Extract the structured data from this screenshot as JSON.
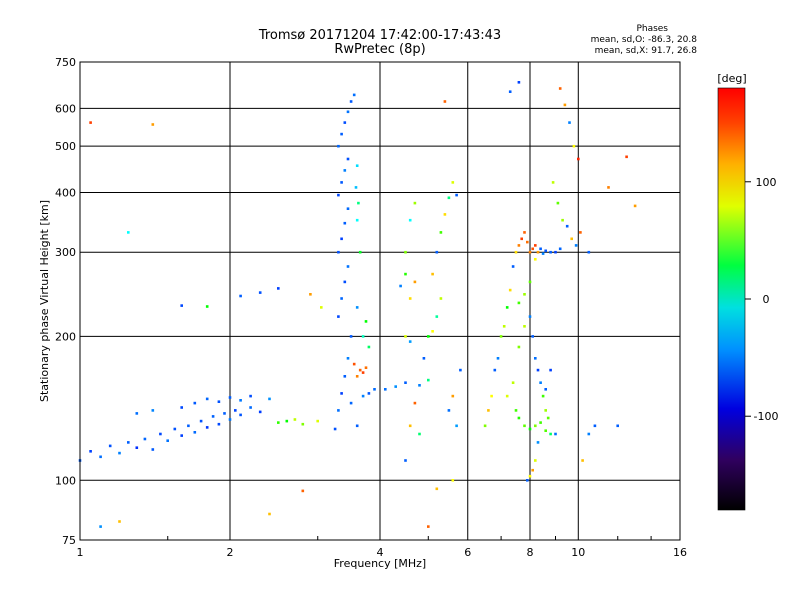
{
  "chart_data": {
    "type": "scatter",
    "title": "Tromsø 20171204 17:42:00-17:43:43",
    "subtitle": "RwPretec (8p)",
    "xlabel": "Frequency [MHz]",
    "ylabel": "Stationary phase Virtual Height [km]",
    "x_scale": "log",
    "y_scale": "log",
    "xlim": [
      1,
      16
    ],
    "ylim": [
      75,
      750
    ],
    "x_ticks": [
      1,
      2,
      4,
      6,
      8,
      10,
      16
    ],
    "x_tick_labels": [
      "1",
      "2",
      "4",
      "6",
      "8",
      "10",
      "16"
    ],
    "y_ticks": [
      75,
      100,
      200,
      300,
      400,
      500,
      600,
      750
    ],
    "y_tick_labels": [
      "75",
      "100",
      "200",
      "300",
      "400",
      "500",
      "600",
      "750"
    ],
    "grid": true,
    "phase_box": {
      "title": "Phases",
      "line_o": "mean, sd,O: -86.3, 20.8",
      "line_x": "mean, sd,X:  91.7, 26.8"
    },
    "colorbar": {
      "label": "[deg]",
      "range": [
        -180,
        180
      ],
      "ticks": [
        100,
        0,
        -100
      ],
      "tick_labels": [
        "100",
        "0",
        "-100"
      ],
      "colormap": "rainbow"
    },
    "series": [
      {
        "points": [
          [
            1.0,
            110,
            -110
          ],
          [
            1.05,
            115,
            -120
          ],
          [
            1.1,
            112,
            -105
          ],
          [
            1.15,
            118,
            -115
          ],
          [
            1.2,
            114,
            -100
          ],
          [
            1.25,
            120,
            -110
          ],
          [
            1.3,
            117,
            -125
          ],
          [
            1.35,
            122,
            -108
          ],
          [
            1.4,
            116,
            -112
          ],
          [
            1.45,
            125,
            -118
          ],
          [
            1.5,
            121,
            -104
          ],
          [
            1.55,
            128,
            -115
          ],
          [
            1.6,
            124,
            -120
          ],
          [
            1.65,
            130,
            -110
          ],
          [
            1.7,
            126,
            -106
          ],
          [
            1.75,
            133,
            -114
          ],
          [
            1.8,
            129,
            -122
          ],
          [
            1.85,
            136,
            -109
          ],
          [
            1.9,
            131,
            -117
          ],
          [
            1.95,
            138,
            -111
          ],
          [
            2.0,
            134,
            -103
          ],
          [
            2.05,
            140,
            -119
          ],
          [
            2.1,
            137,
            -113
          ],
          [
            2.2,
            142,
            -107
          ],
          [
            2.3,
            139,
            -121
          ],
          [
            1.6,
            142,
            -118
          ],
          [
            1.7,
            145,
            -112
          ],
          [
            1.8,
            148,
            -108
          ],
          [
            1.9,
            146,
            -115
          ],
          [
            2.0,
            149,
            -110
          ],
          [
            2.1,
            147,
            -102
          ],
          [
            2.2,
            150,
            -116
          ],
          [
            2.4,
            148,
            -95
          ],
          [
            1.3,
            138,
            -105
          ],
          [
            1.4,
            140,
            -98
          ],
          [
            2.6,
            133,
            20
          ],
          [
            2.8,
            131,
            60
          ],
          [
            3.0,
            133,
            90
          ],
          [
            2.5,
            132,
            35
          ],
          [
            2.7,
            134,
            80
          ],
          [
            2.1,
            243,
            -110
          ],
          [
            2.3,
            247,
            -115
          ],
          [
            2.5,
            252,
            -120
          ],
          [
            1.6,
            232,
            -118
          ],
          [
            1.8,
            231,
            20
          ],
          [
            3.25,
            128,
            -115
          ],
          [
            3.3,
            140,
            -105
          ],
          [
            3.35,
            152,
            -120
          ],
          [
            3.4,
            165,
            -110
          ],
          [
            3.45,
            180,
            -100
          ],
          [
            3.5,
            200,
            -112
          ],
          [
            3.3,
            220,
            -118
          ],
          [
            3.35,
            240,
            -108
          ],
          [
            3.4,
            260,
            -116
          ],
          [
            3.45,
            280,
            -104
          ],
          [
            3.3,
            300,
            -114
          ],
          [
            3.35,
            320,
            -120
          ],
          [
            3.4,
            345,
            -110
          ],
          [
            3.45,
            370,
            -106
          ],
          [
            3.3,
            395,
            -118
          ],
          [
            3.35,
            420,
            -112
          ],
          [
            3.4,
            445,
            -100
          ],
          [
            3.45,
            470,
            -115
          ],
          [
            3.3,
            500,
            -108
          ],
          [
            3.35,
            530,
            -110
          ],
          [
            3.4,
            560,
            -116
          ],
          [
            3.45,
            590,
            -104
          ],
          [
            3.5,
            620,
            -112
          ],
          [
            3.55,
            640,
            -105
          ],
          [
            3.6,
            230,
            -95
          ],
          [
            3.6,
            350,
            -60
          ],
          [
            3.62,
            380,
            -20
          ],
          [
            3.65,
            300,
            10
          ],
          [
            3.58,
            410,
            -80
          ],
          [
            3.6,
            455,
            -70
          ],
          [
            3.6,
            130,
            -110
          ],
          [
            3.5,
            145,
            -108
          ],
          [
            3.7,
            150,
            -100
          ],
          [
            3.8,
            152,
            -112
          ],
          [
            3.9,
            155,
            -106
          ],
          [
            3.6,
            165,
            140
          ],
          [
            3.65,
            170,
            150
          ],
          [
            3.7,
            168,
            160
          ],
          [
            3.75,
            172,
            145
          ],
          [
            3.55,
            175,
            155
          ],
          [
            3.7,
            200,
            -40
          ],
          [
            3.75,
            215,
            20
          ],
          [
            3.8,
            190,
            -10
          ],
          [
            4.1,
            155,
            -105
          ],
          [
            4.3,
            157,
            -95
          ],
          [
            4.5,
            160,
            -110
          ],
          [
            4.8,
            158,
            -100
          ],
          [
            5.0,
            162,
            -20
          ],
          [
            4.5,
            200,
            90
          ],
          [
            4.6,
            240,
            110
          ],
          [
            4.7,
            260,
            130
          ],
          [
            4.5,
            300,
            60
          ],
          [
            4.6,
            350,
            -60
          ],
          [
            4.7,
            380,
            70
          ],
          [
            4.6,
            130,
            120
          ],
          [
            4.7,
            145,
            150
          ],
          [
            4.8,
            125,
            -15
          ],
          [
            4.5,
            110,
            -110
          ],
          [
            4.4,
            255,
            -100
          ],
          [
            4.5,
            270,
            30
          ],
          [
            4.6,
            195,
            -90
          ],
          [
            4.9,
            180,
            -110
          ],
          [
            5.0,
            200,
            20
          ],
          [
            5.1,
            205,
            100
          ],
          [
            5.2,
            220,
            -30
          ],
          [
            5.3,
            240,
            80
          ],
          [
            5.1,
            270,
            120
          ],
          [
            5.2,
            300,
            -110
          ],
          [
            5.3,
            330,
            40
          ],
          [
            5.4,
            360,
            110
          ],
          [
            5.5,
            390,
            -20
          ],
          [
            5.6,
            420,
            90
          ],
          [
            5.7,
            395,
            -110
          ],
          [
            5.5,
            140,
            -105
          ],
          [
            5.6,
            150,
            130
          ],
          [
            5.7,
            130,
            -90
          ],
          [
            5.8,
            170,
            -110
          ],
          [
            5.6,
            100,
            100
          ],
          [
            5.4,
            620,
            150
          ],
          [
            5.0,
            80,
            150
          ],
          [
            5.2,
            96,
            120
          ],
          [
            6.5,
            130,
            60
          ],
          [
            6.6,
            140,
            120
          ],
          [
            6.7,
            150,
            100
          ],
          [
            6.8,
            170,
            -110
          ],
          [
            6.9,
            180,
            -100
          ],
          [
            7.0,
            200,
            60
          ],
          [
            7.1,
            210,
            80
          ],
          [
            7.2,
            230,
            20
          ],
          [
            7.3,
            250,
            110
          ],
          [
            7.4,
            280,
            -110
          ],
          [
            7.5,
            300,
            110
          ],
          [
            7.6,
            310,
            140
          ],
          [
            7.7,
            320,
            160
          ],
          [
            7.8,
            330,
            150
          ],
          [
            7.9,
            315,
            145
          ],
          [
            8.0,
            300,
            140
          ],
          [
            8.1,
            305,
            155
          ],
          [
            8.2,
            310,
            160
          ],
          [
            8.3,
            300,
            130
          ],
          [
            8.4,
            305,
            -110
          ],
          [
            8.5,
            298,
            -100
          ],
          [
            8.6,
            302,
            -115
          ],
          [
            8.8,
            300,
            -110
          ],
          [
            9.0,
            300,
            -120
          ],
          [
            9.2,
            305,
            -108
          ],
          [
            7.5,
            140,
            40
          ],
          [
            7.6,
            135,
            30
          ],
          [
            7.8,
            130,
            50
          ],
          [
            8.0,
            128,
            20
          ],
          [
            8.2,
            130,
            60
          ],
          [
            8.4,
            132,
            40
          ],
          [
            8.6,
            127,
            45
          ],
          [
            8.8,
            125,
            -10
          ],
          [
            7.2,
            150,
            90
          ],
          [
            7.4,
            160,
            80
          ],
          [
            7.6,
            190,
            60
          ],
          [
            7.8,
            210,
            80
          ],
          [
            8.0,
            220,
            -100
          ],
          [
            8.1,
            200,
            -110
          ],
          [
            8.2,
            180,
            -105
          ],
          [
            8.3,
            170,
            -120
          ],
          [
            8.4,
            160,
            -100
          ],
          [
            8.5,
            150,
            40
          ],
          [
            8.6,
            140,
            70
          ],
          [
            8.7,
            135,
            50
          ],
          [
            7.9,
            100,
            -110
          ],
          [
            8.0,
            102,
            100
          ],
          [
            8.1,
            105,
            130
          ],
          [
            8.2,
            110,
            90
          ],
          [
            8.3,
            120,
            -95
          ],
          [
            7.3,
            650,
            -110
          ],
          [
            7.6,
            680,
            -120
          ],
          [
            8.9,
            420,
            80
          ],
          [
            9.1,
            380,
            50
          ],
          [
            9.3,
            350,
            70
          ],
          [
            9.5,
            340,
            -110
          ],
          [
            9.7,
            320,
            120
          ],
          [
            9.9,
            310,
            -100
          ],
          [
            10.1,
            330,
            150
          ],
          [
            10.5,
            300,
            -110
          ],
          [
            10.0,
            470,
            170
          ],
          [
            9.8,
            500,
            100
          ],
          [
            9.6,
            560,
            -100
          ],
          [
            9.4,
            610,
            130
          ],
          [
            9.2,
            660,
            150
          ],
          [
            8.6,
            155,
            -110
          ],
          [
            8.8,
            170,
            -120
          ],
          [
            9.0,
            125,
            -105
          ],
          [
            10.5,
            125,
            -100
          ],
          [
            10.8,
            130,
            -110
          ],
          [
            10.2,
            110,
            120
          ],
          [
            7.6,
            235,
            40
          ],
          [
            7.8,
            245,
            70
          ],
          [
            8.0,
            260,
            50
          ],
          [
            8.2,
            290,
            100
          ],
          [
            1.05,
            560,
            160
          ],
          [
            1.4,
            555,
            130
          ],
          [
            1.25,
            330,
            -60
          ],
          [
            2.9,
            245,
            130
          ],
          [
            3.05,
            230,
            90
          ],
          [
            2.4,
            85,
            120
          ],
          [
            2.8,
            95,
            150
          ],
          [
            1.1,
            80,
            -95
          ],
          [
            1.2,
            82,
            120
          ],
          [
            11.5,
            410,
            140
          ],
          [
            12.5,
            475,
            160
          ],
          [
            13.0,
            375,
            130
          ],
          [
            12.0,
            130,
            -110
          ]
        ]
      }
    ]
  }
}
